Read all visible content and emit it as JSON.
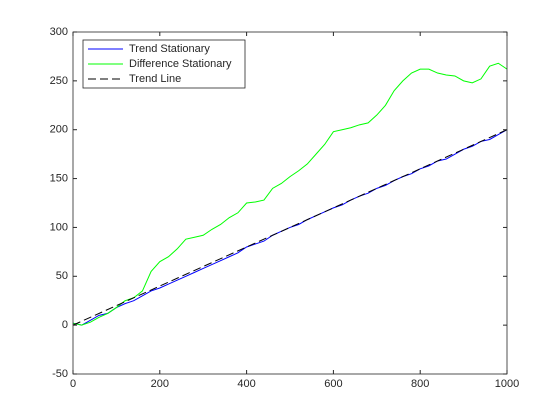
{
  "chart_data": {
    "type": "line",
    "x": [
      0,
      20,
      40,
      60,
      80,
      100,
      120,
      140,
      160,
      180,
      200,
      220,
      240,
      260,
      280,
      300,
      320,
      340,
      360,
      380,
      400,
      420,
      440,
      460,
      480,
      500,
      520,
      540,
      560,
      580,
      600,
      620,
      640,
      660,
      680,
      700,
      720,
      740,
      760,
      780,
      800,
      820,
      840,
      860,
      880,
      900,
      920,
      940,
      960,
      980,
      1000
    ],
    "series": [
      {
        "name": "Trend Stationary",
        "color": "#0000ff",
        "dash": false,
        "values": [
          2,
          0,
          5,
          10,
          12,
          18,
          22,
          25,
          30,
          35,
          38,
          42,
          46,
          50,
          54,
          58,
          62,
          66,
          70,
          74,
          80,
          83,
          86,
          92,
          96,
          100,
          103,
          108,
          112,
          116,
          120,
          123,
          128,
          132,
          135,
          140,
          143,
          148,
          152,
          155,
          160,
          163,
          168,
          170,
          175,
          180,
          183,
          188,
          190,
          195,
          200
        ]
      },
      {
        "name": "Difference Stationary",
        "color": "#00ff00",
        "dash": false,
        "values": [
          2,
          0,
          3,
          8,
          12,
          18,
          25,
          28,
          35,
          55,
          65,
          70,
          78,
          88,
          90,
          92,
          98,
          103,
          110,
          115,
          125,
          126,
          128,
          140,
          145,
          152,
          158,
          165,
          175,
          185,
          198,
          200,
          202,
          205,
          207,
          215,
          225,
          240,
          250,
          258,
          262,
          262,
          258,
          256,
          255,
          250,
          248,
          252,
          265,
          268,
          262
        ]
      },
      {
        "name": "Trend Line",
        "color": "#000000",
        "dash": true,
        "x": [
          0,
          1000
        ],
        "values": [
          0,
          200
        ]
      }
    ],
    "xlim": [
      0,
      1000
    ],
    "ylim": [
      -50,
      300
    ],
    "xticks": [
      0,
      200,
      400,
      600,
      800,
      1000
    ],
    "yticks": [
      -50,
      0,
      50,
      100,
      150,
      200,
      250,
      300
    ],
    "legend": "upper-left",
    "grid": false
  }
}
